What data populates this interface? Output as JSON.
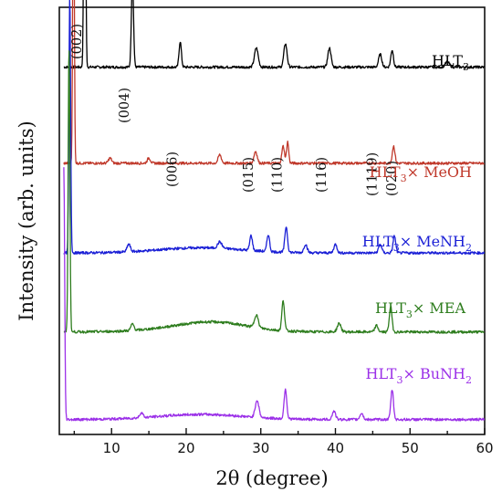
{
  "chart_data": {
    "type": "line",
    "xlabel": "2θ (degree)",
    "ylabel": "Intensity (arb. units)",
    "xlim": [
      3,
      60
    ],
    "xticks": [
      10,
      20,
      30,
      40,
      50,
      60
    ],
    "grid": false,
    "series": [
      {
        "name": "HLT3",
        "label_main": "HLT",
        "label_sub": "3",
        "label_rest": "",
        "color": "#000000",
        "baseline": 0.86,
        "peaks": [
          [
            6.4,
            0.82,
            0.16
          ],
          [
            12.8,
            0.21,
            0.2
          ],
          [
            19.2,
            0.06,
            0.22
          ],
          [
            29.4,
            0.045,
            0.35
          ],
          [
            33.3,
            0.055,
            0.3
          ],
          [
            39.2,
            0.045,
            0.3
          ],
          [
            46.0,
            0.03,
            0.3
          ],
          [
            47.6,
            0.04,
            0.25
          ],
          [
            55.0,
            0.012,
            0.4
          ]
        ]
      },
      {
        "name": "HLT3× MeOH",
        "label_main": "HLT",
        "label_sub": "3",
        "label_rest": "× MeOH",
        "color": "#c0392b",
        "baseline": 0.635,
        "peaks": [
          [
            4.9,
            0.81,
            0.14
          ],
          [
            9.8,
            0.012,
            0.3
          ],
          [
            15.0,
            0.012,
            0.3
          ],
          [
            24.5,
            0.02,
            0.3
          ],
          [
            29.3,
            0.028,
            0.3
          ],
          [
            33.0,
            0.04,
            0.25
          ],
          [
            33.6,
            0.05,
            0.2
          ],
          [
            47.8,
            0.04,
            0.25
          ]
        ]
      },
      {
        "name": "HLT3× MeNH2",
        "label_main": "HLT",
        "label_sub": "3",
        "label_rest": "× MeNH",
        "label_sub2": "2",
        "color": "#1a1fd6",
        "baseline": 0.425,
        "peaks": [
          [
            4.4,
            0.6,
            0.16
          ],
          [
            12.3,
            0.018,
            0.3
          ],
          [
            24.5,
            0.015,
            0.4
          ],
          [
            28.7,
            0.035,
            0.25
          ],
          [
            31.0,
            0.04,
            0.25
          ],
          [
            33.4,
            0.06,
            0.25
          ],
          [
            36.0,
            0.02,
            0.3
          ],
          [
            40.0,
            0.02,
            0.3
          ],
          [
            46.0,
            0.02,
            0.3
          ],
          [
            47.9,
            0.04,
            0.25
          ]
        ]
      },
      {
        "name": "HLT3× MEA",
        "label_main": "HLT",
        "label_sub": "3",
        "label_rest": "× MEA",
        "color": "#2e7d1e",
        "baseline": 0.24,
        "peaks": [
          [
            4.3,
            0.67,
            0.16
          ],
          [
            12.8,
            0.015,
            0.3
          ],
          [
            29.4,
            0.03,
            0.35
          ],
          [
            33.0,
            0.07,
            0.25
          ],
          [
            40.5,
            0.02,
            0.35
          ],
          [
            45.5,
            0.015,
            0.3
          ],
          [
            47.4,
            0.06,
            0.25
          ]
        ]
      },
      {
        "name": "HLT3× BuNH2",
        "label_main": "HLT",
        "label_sub": "3",
        "label_rest": "× BuNH",
        "label_sub2": "2",
        "color": "#9b30e8",
        "baseline": 0.035,
        "peaks": [
          [
            3.6,
            0.59,
            0.16
          ],
          [
            14.0,
            0.012,
            0.3
          ],
          [
            29.5,
            0.04,
            0.35
          ],
          [
            33.3,
            0.07,
            0.25
          ],
          [
            39.8,
            0.02,
            0.3
          ],
          [
            43.5,
            0.015,
            0.3
          ],
          [
            47.6,
            0.07,
            0.25
          ]
        ]
      }
    ],
    "peak_labels": [
      {
        "text": "(002)",
        "x": 6.4
      },
      {
        "text": "(004)",
        "x": 12.8
      },
      {
        "text": "(006)",
        "x": 19.2
      },
      {
        "text": "(015)",
        "x": 29.4
      },
      {
        "text": "(110)",
        "x": 33.3
      },
      {
        "text": "(116)",
        "x": 39.2
      },
      {
        "text": "(1119)",
        "x": 46.0
      },
      {
        "text": "(020)",
        "x": 48.6
      }
    ]
  }
}
